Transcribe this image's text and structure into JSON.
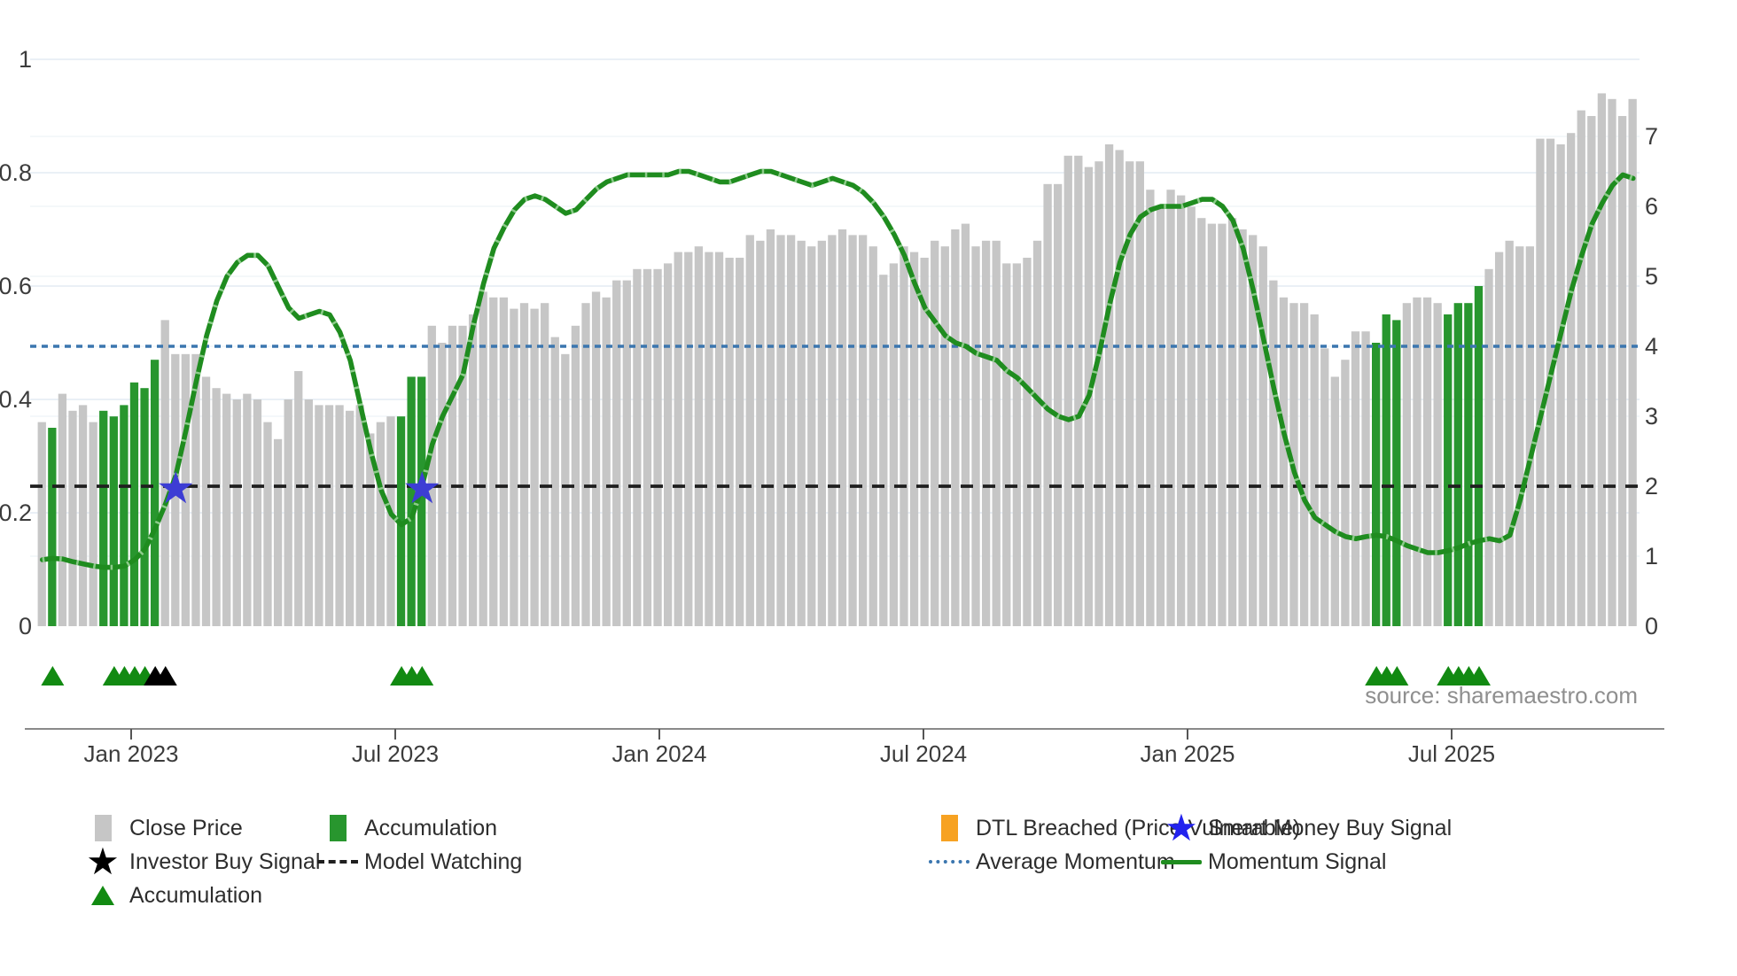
{
  "source_note": "source: sharemaestro.com",
  "legend": {
    "columns": [
      [
        {
          "icon": "square-gray",
          "label": "Close Price"
        },
        {
          "icon": "star-black",
          "label": "Investor Buy Signal"
        },
        {
          "icon": "triangle-green",
          "label": "Accumulation"
        }
      ],
      [
        {
          "icon": "square-green",
          "label": "Accumulation"
        },
        {
          "icon": "dash-black",
          "label": "Model Watching"
        }
      ],
      [
        {
          "icon": "square-orange",
          "label": "DTL Breached (Price Vulnerable)"
        },
        {
          "icon": "dots-blue",
          "label": "Average Momentum"
        }
      ],
      [
        {
          "icon": "star-blue",
          "label": "Smart Money Buy Signal"
        },
        {
          "icon": "line-green",
          "label": "Momentum Signal"
        }
      ]
    ]
  },
  "chart_data": {
    "type": "bar",
    "title": "",
    "xlabel": "",
    "ylabel": "",
    "x_tick_labels": [
      "Jan 2023",
      "Jul 2023",
      "Jan 2024",
      "Jul 2024",
      "Jan 2025",
      "Jul 2025"
    ],
    "left_axis": {
      "range": [
        0,
        1
      ],
      "ticks": [
        0,
        0.2,
        0.4,
        0.6,
        0.8,
        1
      ]
    },
    "right_axis": {
      "range": [
        0,
        7
      ],
      "ticks": [
        0,
        1,
        2,
        3,
        4,
        5,
        6,
        7
      ]
    },
    "average_momentum_level_right_axis": 4,
    "model_watching_level_right_axis": 2,
    "grid": true,
    "legend_position": "bottom",
    "series": [
      {
        "name": "Close Price",
        "type": "bar",
        "axis": "left",
        "values": [
          0.36,
          0.35,
          0.41,
          0.38,
          0.39,
          0.36,
          0.38,
          0.37,
          0.39,
          0.43,
          0.42,
          0.47,
          0.54,
          0.48,
          0.48,
          0.48,
          0.44,
          0.42,
          0.41,
          0.4,
          0.41,
          0.4,
          0.36,
          0.33,
          0.4,
          0.45,
          0.4,
          0.39,
          0.39,
          0.39,
          0.38,
          0.39,
          0.34,
          0.36,
          0.37,
          0.37,
          0.44,
          0.44,
          0.53,
          0.5,
          0.53,
          0.53,
          0.55,
          0.59,
          0.58,
          0.58,
          0.56,
          0.57,
          0.56,
          0.57,
          0.51,
          0.48,
          0.53,
          0.57,
          0.59,
          0.58,
          0.61,
          0.61,
          0.63,
          0.63,
          0.63,
          0.64,
          0.66,
          0.66,
          0.67,
          0.66,
          0.66,
          0.65,
          0.65,
          0.69,
          0.68,
          0.7,
          0.69,
          0.69,
          0.68,
          0.67,
          0.68,
          0.69,
          0.7,
          0.69,
          0.69,
          0.67,
          0.62,
          0.64,
          0.67,
          0.66,
          0.65,
          0.68,
          0.67,
          0.7,
          0.71,
          0.67,
          0.68,
          0.68,
          0.64,
          0.64,
          0.65,
          0.68,
          0.78,
          0.78,
          0.83,
          0.83,
          0.81,
          0.82,
          0.85,
          0.84,
          0.82,
          0.82,
          0.77,
          0.74,
          0.77,
          0.76,
          0.74,
          0.72,
          0.71,
          0.71,
          0.72,
          0.7,
          0.69,
          0.67,
          0.61,
          0.58,
          0.57,
          0.57,
          0.55,
          0.49,
          0.44,
          0.47,
          0.52,
          0.52,
          0.5,
          0.55,
          0.54,
          0.57,
          0.58,
          0.58,
          0.57,
          0.55,
          0.57,
          0.57,
          0.6,
          0.63,
          0.66,
          0.68,
          0.67,
          0.67,
          0.86,
          0.86,
          0.85,
          0.87,
          0.91,
          0.9,
          0.94,
          0.93,
          0.9,
          0.93
        ]
      },
      {
        "name": "Momentum Signal",
        "type": "line",
        "axis": "right",
        "values": [
          0.95,
          0.97,
          0.96,
          0.92,
          0.89,
          0.86,
          0.84,
          0.84,
          0.86,
          0.95,
          1.1,
          1.4,
          1.75,
          2.15,
          2.8,
          3.5,
          4.15,
          4.65,
          5.0,
          5.2,
          5.3,
          5.3,
          5.15,
          4.85,
          4.55,
          4.4,
          4.45,
          4.5,
          4.45,
          4.2,
          3.8,
          3.15,
          2.5,
          1.95,
          1.6,
          1.45,
          1.55,
          2.0,
          2.6,
          3.0,
          3.3,
          3.6,
          4.3,
          4.9,
          5.4,
          5.7,
          5.95,
          6.1,
          6.15,
          6.1,
          6.0,
          5.9,
          5.95,
          6.1,
          6.25,
          6.35,
          6.4,
          6.45,
          6.45,
          6.45,
          6.45,
          6.45,
          6.5,
          6.5,
          6.45,
          6.4,
          6.35,
          6.35,
          6.4,
          6.45,
          6.5,
          6.5,
          6.45,
          6.4,
          6.35,
          6.3,
          6.35,
          6.4,
          6.35,
          6.3,
          6.2,
          6.05,
          5.85,
          5.6,
          5.3,
          4.9,
          4.55,
          4.35,
          4.15,
          4.05,
          4.0,
          3.9,
          3.85,
          3.8,
          3.65,
          3.55,
          3.4,
          3.25,
          3.1,
          3.0,
          2.95,
          3.0,
          3.3,
          3.9,
          4.6,
          5.2,
          5.6,
          5.85,
          5.95,
          6.0,
          6.0,
          6.0,
          6.05,
          6.1,
          6.1,
          6.0,
          5.8,
          5.4,
          4.8,
          4.1,
          3.4,
          2.75,
          2.2,
          1.8,
          1.55,
          1.45,
          1.35,
          1.28,
          1.25,
          1.28,
          1.3,
          1.28,
          1.22,
          1.15,
          1.1,
          1.05,
          1.05,
          1.08,
          1.12,
          1.18,
          1.22,
          1.25,
          1.22,
          1.3,
          1.8,
          2.4,
          3.0,
          3.6,
          4.2,
          4.8,
          5.3,
          5.75,
          6.05,
          6.3,
          6.45,
          6.4
        ]
      }
    ],
    "accumulation_bar_indices": [
      2,
      7,
      8,
      9,
      10,
      11,
      12,
      36,
      37,
      38,
      131,
      132,
      133,
      138,
      139,
      140,
      141
    ],
    "markers": {
      "accumulation_triangle_bar_indices": [
        2,
        8,
        9,
        10,
        11,
        36,
        37,
        38,
        131,
        132,
        133,
        138,
        139,
        140,
        141
      ],
      "investor_buy_triangle_bar_indices": [
        12,
        13
      ],
      "smart_money_star_bar_indices": [
        14,
        38
      ]
    },
    "colors": {
      "close_price_bar": "#c6c6c6",
      "accumulation_bar": "#28962e",
      "momentum_line": "#1f8c1f",
      "momentum_line_hatch": "#8ccb8a",
      "average_momentum_dotted": "#3b76af",
      "model_watching_dashed": "#1f1f1f",
      "smart_money_star": "#3d3dd4",
      "legend_star_blue": "#2222ee",
      "investor_buy_black": "#000000",
      "accumulation_triangle": "#128a12",
      "dtl_breached_orange": "#f7a222",
      "tick_label": "#3c3c3c",
      "gridline": "#e3ebf3",
      "axis_spine": "#8a8a8a",
      "source_text": "#8f8f8f"
    }
  }
}
